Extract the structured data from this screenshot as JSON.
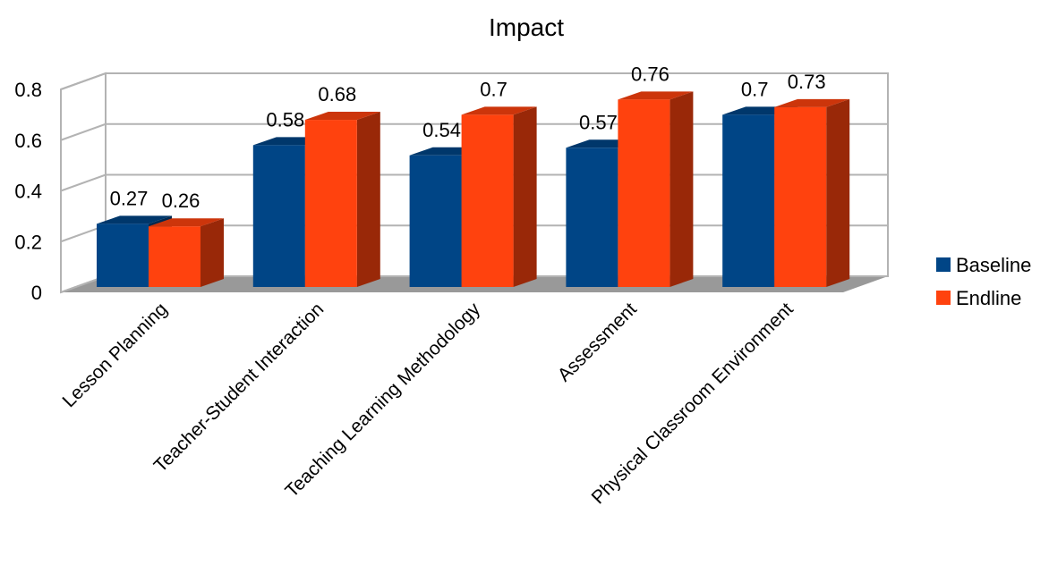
{
  "chart_data": {
    "type": "bar",
    "title": "Impact",
    "xlabel": "",
    "ylabel": "",
    "categories": [
      "Lesson Planning",
      "Teacher-Student Interaction",
      "Teaching Learning Methodology",
      "Assessment",
      "Physical Classroom Environment"
    ],
    "series": [
      {
        "name": "Baseline",
        "values": [
          0.27,
          0.58,
          0.54,
          0.57,
          0.7
        ],
        "color": "#004586"
      },
      {
        "name": "Endline",
        "values": [
          0.26,
          0.68,
          0.7,
          0.76,
          0.73
        ],
        "color": "#ff420e"
      }
    ],
    "ylim": [
      0,
      0.8
    ],
    "yticks": [
      "0",
      "0.2",
      "0.4",
      "0.6",
      "0.8"
    ],
    "grid": true,
    "legend": "right",
    "style": "3d-column"
  }
}
